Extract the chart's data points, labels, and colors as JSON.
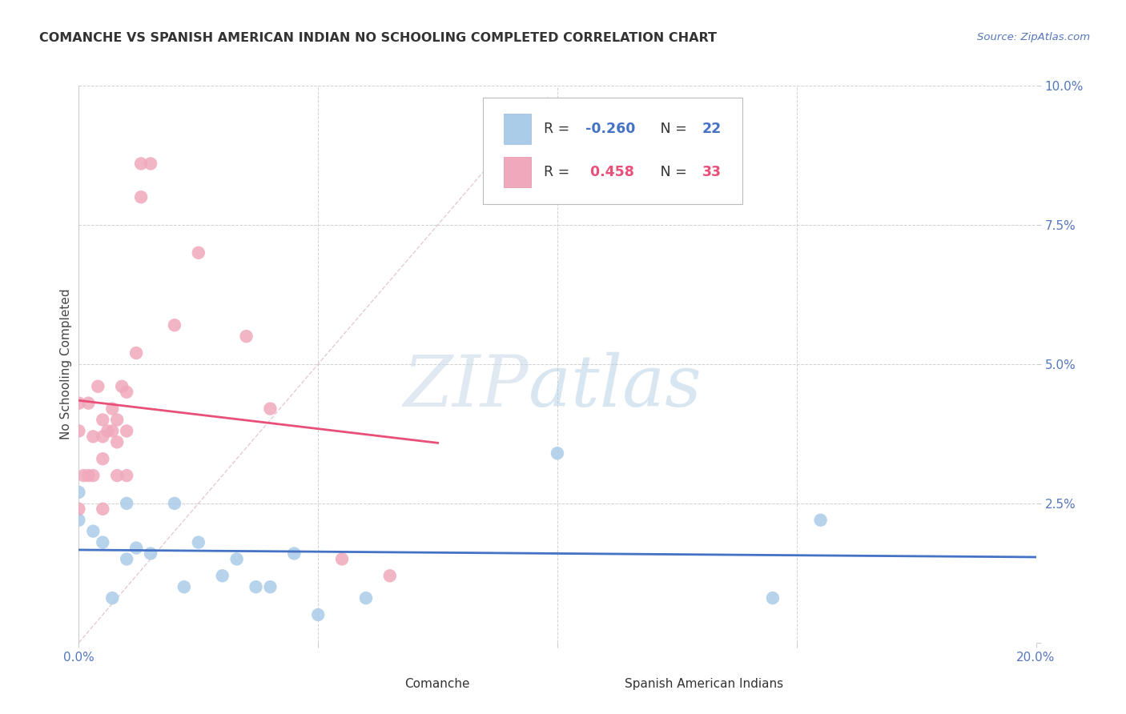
{
  "title": "COMANCHE VS SPANISH AMERICAN INDIAN NO SCHOOLING COMPLETED CORRELATION CHART",
  "source": "Source: ZipAtlas.com",
  "ylabel": "No Schooling Completed",
  "watermark_zip": "ZIP",
  "watermark_atlas": "atlas",
  "xlim": [
    0.0,
    0.2
  ],
  "ylim": [
    0.0,
    0.1
  ],
  "xticks": [
    0.0,
    0.05,
    0.1,
    0.15,
    0.2
  ],
  "yticks": [
    0.0,
    0.025,
    0.05,
    0.075,
    0.1
  ],
  "comanche_R": -0.26,
  "comanche_N": 22,
  "spanish_R": 0.458,
  "spanish_N": 33,
  "comanche_color": "#aacce8",
  "spanish_color": "#f0a8bc",
  "comanche_line_color": "#4472c4",
  "spanish_line_color": "#e8507a",
  "diagonal_color": "#e0b8c8",
  "background": "#ffffff",
  "grid_color": "#cccccc",
  "tick_color": "#5577bb",
  "title_color": "#333333",
  "comanche_x": [
    0.0,
    0.0,
    0.003,
    0.005,
    0.007,
    0.01,
    0.01,
    0.012,
    0.015,
    0.02,
    0.022,
    0.025,
    0.03,
    0.033,
    0.037,
    0.04,
    0.045,
    0.05,
    0.06,
    0.1,
    0.145,
    0.155
  ],
  "comanche_y": [
    0.027,
    0.022,
    0.02,
    0.018,
    0.008,
    0.025,
    0.015,
    0.017,
    0.016,
    0.025,
    0.01,
    0.018,
    0.012,
    0.015,
    0.01,
    0.01,
    0.016,
    0.005,
    0.008,
    0.034,
    0.008,
    0.022
  ],
  "spanish_x": [
    0.0,
    0.0,
    0.0,
    0.001,
    0.002,
    0.002,
    0.003,
    0.003,
    0.004,
    0.005,
    0.005,
    0.005,
    0.005,
    0.006,
    0.007,
    0.007,
    0.008,
    0.008,
    0.008,
    0.009,
    0.01,
    0.01,
    0.01,
    0.012,
    0.013,
    0.013,
    0.015,
    0.02,
    0.025,
    0.035,
    0.04,
    0.055,
    0.065
  ],
  "spanish_y": [
    0.043,
    0.038,
    0.024,
    0.03,
    0.043,
    0.03,
    0.037,
    0.03,
    0.046,
    0.04,
    0.037,
    0.033,
    0.024,
    0.038,
    0.042,
    0.038,
    0.04,
    0.036,
    0.03,
    0.046,
    0.045,
    0.038,
    0.03,
    0.052,
    0.08,
    0.086,
    0.086,
    0.057,
    0.07,
    0.055,
    0.042,
    0.015,
    0.012
  ],
  "legend_r1": "R = -0.260",
  "legend_n1": "N = 22",
  "legend_r2": "R =  0.458",
  "legend_n2": "N = 33"
}
